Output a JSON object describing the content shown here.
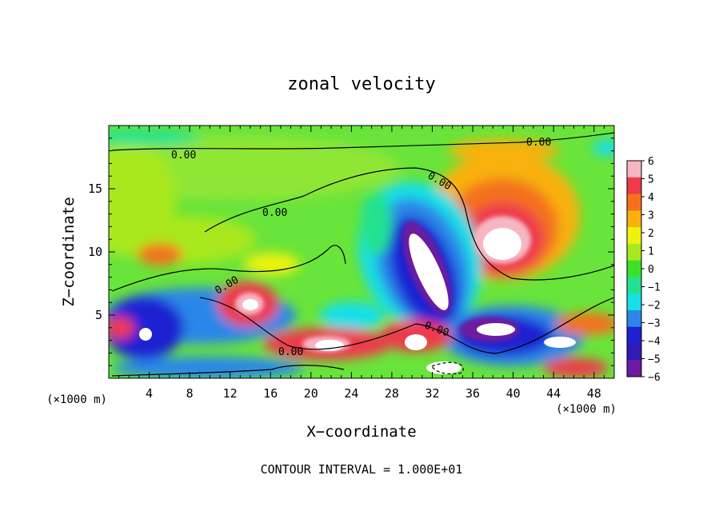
{
  "chart_data": {
    "type": "heatmap",
    "title": "zonal velocity",
    "xlabel": "X−coordinate",
    "ylabel": "Z−coordinate",
    "x_unit_label": "(×1000 m)",
    "y_unit_label": "(×1000 m)",
    "footer": "CONTOUR INTERVAL = 1.000E+01",
    "xlim": [
      0,
      50
    ],
    "ylim": [
      0,
      20
    ],
    "x_ticks": [
      4,
      8,
      12,
      16,
      20,
      24,
      28,
      32,
      36,
      40,
      44,
      48
    ],
    "y_ticks": [
      5,
      10,
      15
    ],
    "colorbar": {
      "ticks": [
        6,
        5,
        4,
        3,
        2,
        1,
        0,
        -1,
        -2,
        -3,
        -4,
        -5,
        -6
      ],
      "colors": [
        "#f7b6c4",
        "#ee3a4c",
        "#f4711d",
        "#f8b10f",
        "#eef20d",
        "#a8e81e",
        "#3be12b",
        "#22e290",
        "#19dfe6",
        "#2c86e8",
        "#1d21d2",
        "#2f1cb4",
        "#6c1aa0"
      ]
    },
    "contour_labels": [
      "0.00",
      "0.00",
      "0.00",
      "0.00",
      "0.00",
      "0.00",
      "0.00"
    ],
    "features": [
      {
        "x": 38.5,
        "z": 10.5,
        "value": 6,
        "label": "positive jet core"
      },
      {
        "x": 30.5,
        "z": 8.0,
        "value": -6,
        "label": "negative core"
      },
      {
        "x": 38.5,
        "z": 3.5,
        "value": -6,
        "label": "negative core"
      },
      {
        "x": 14.0,
        "z": 5.5,
        "value": 5,
        "label": "positive cell"
      },
      {
        "x": 20.0,
        "z": 3.0,
        "value": 5,
        "label": "positive cell"
      }
    ]
  }
}
